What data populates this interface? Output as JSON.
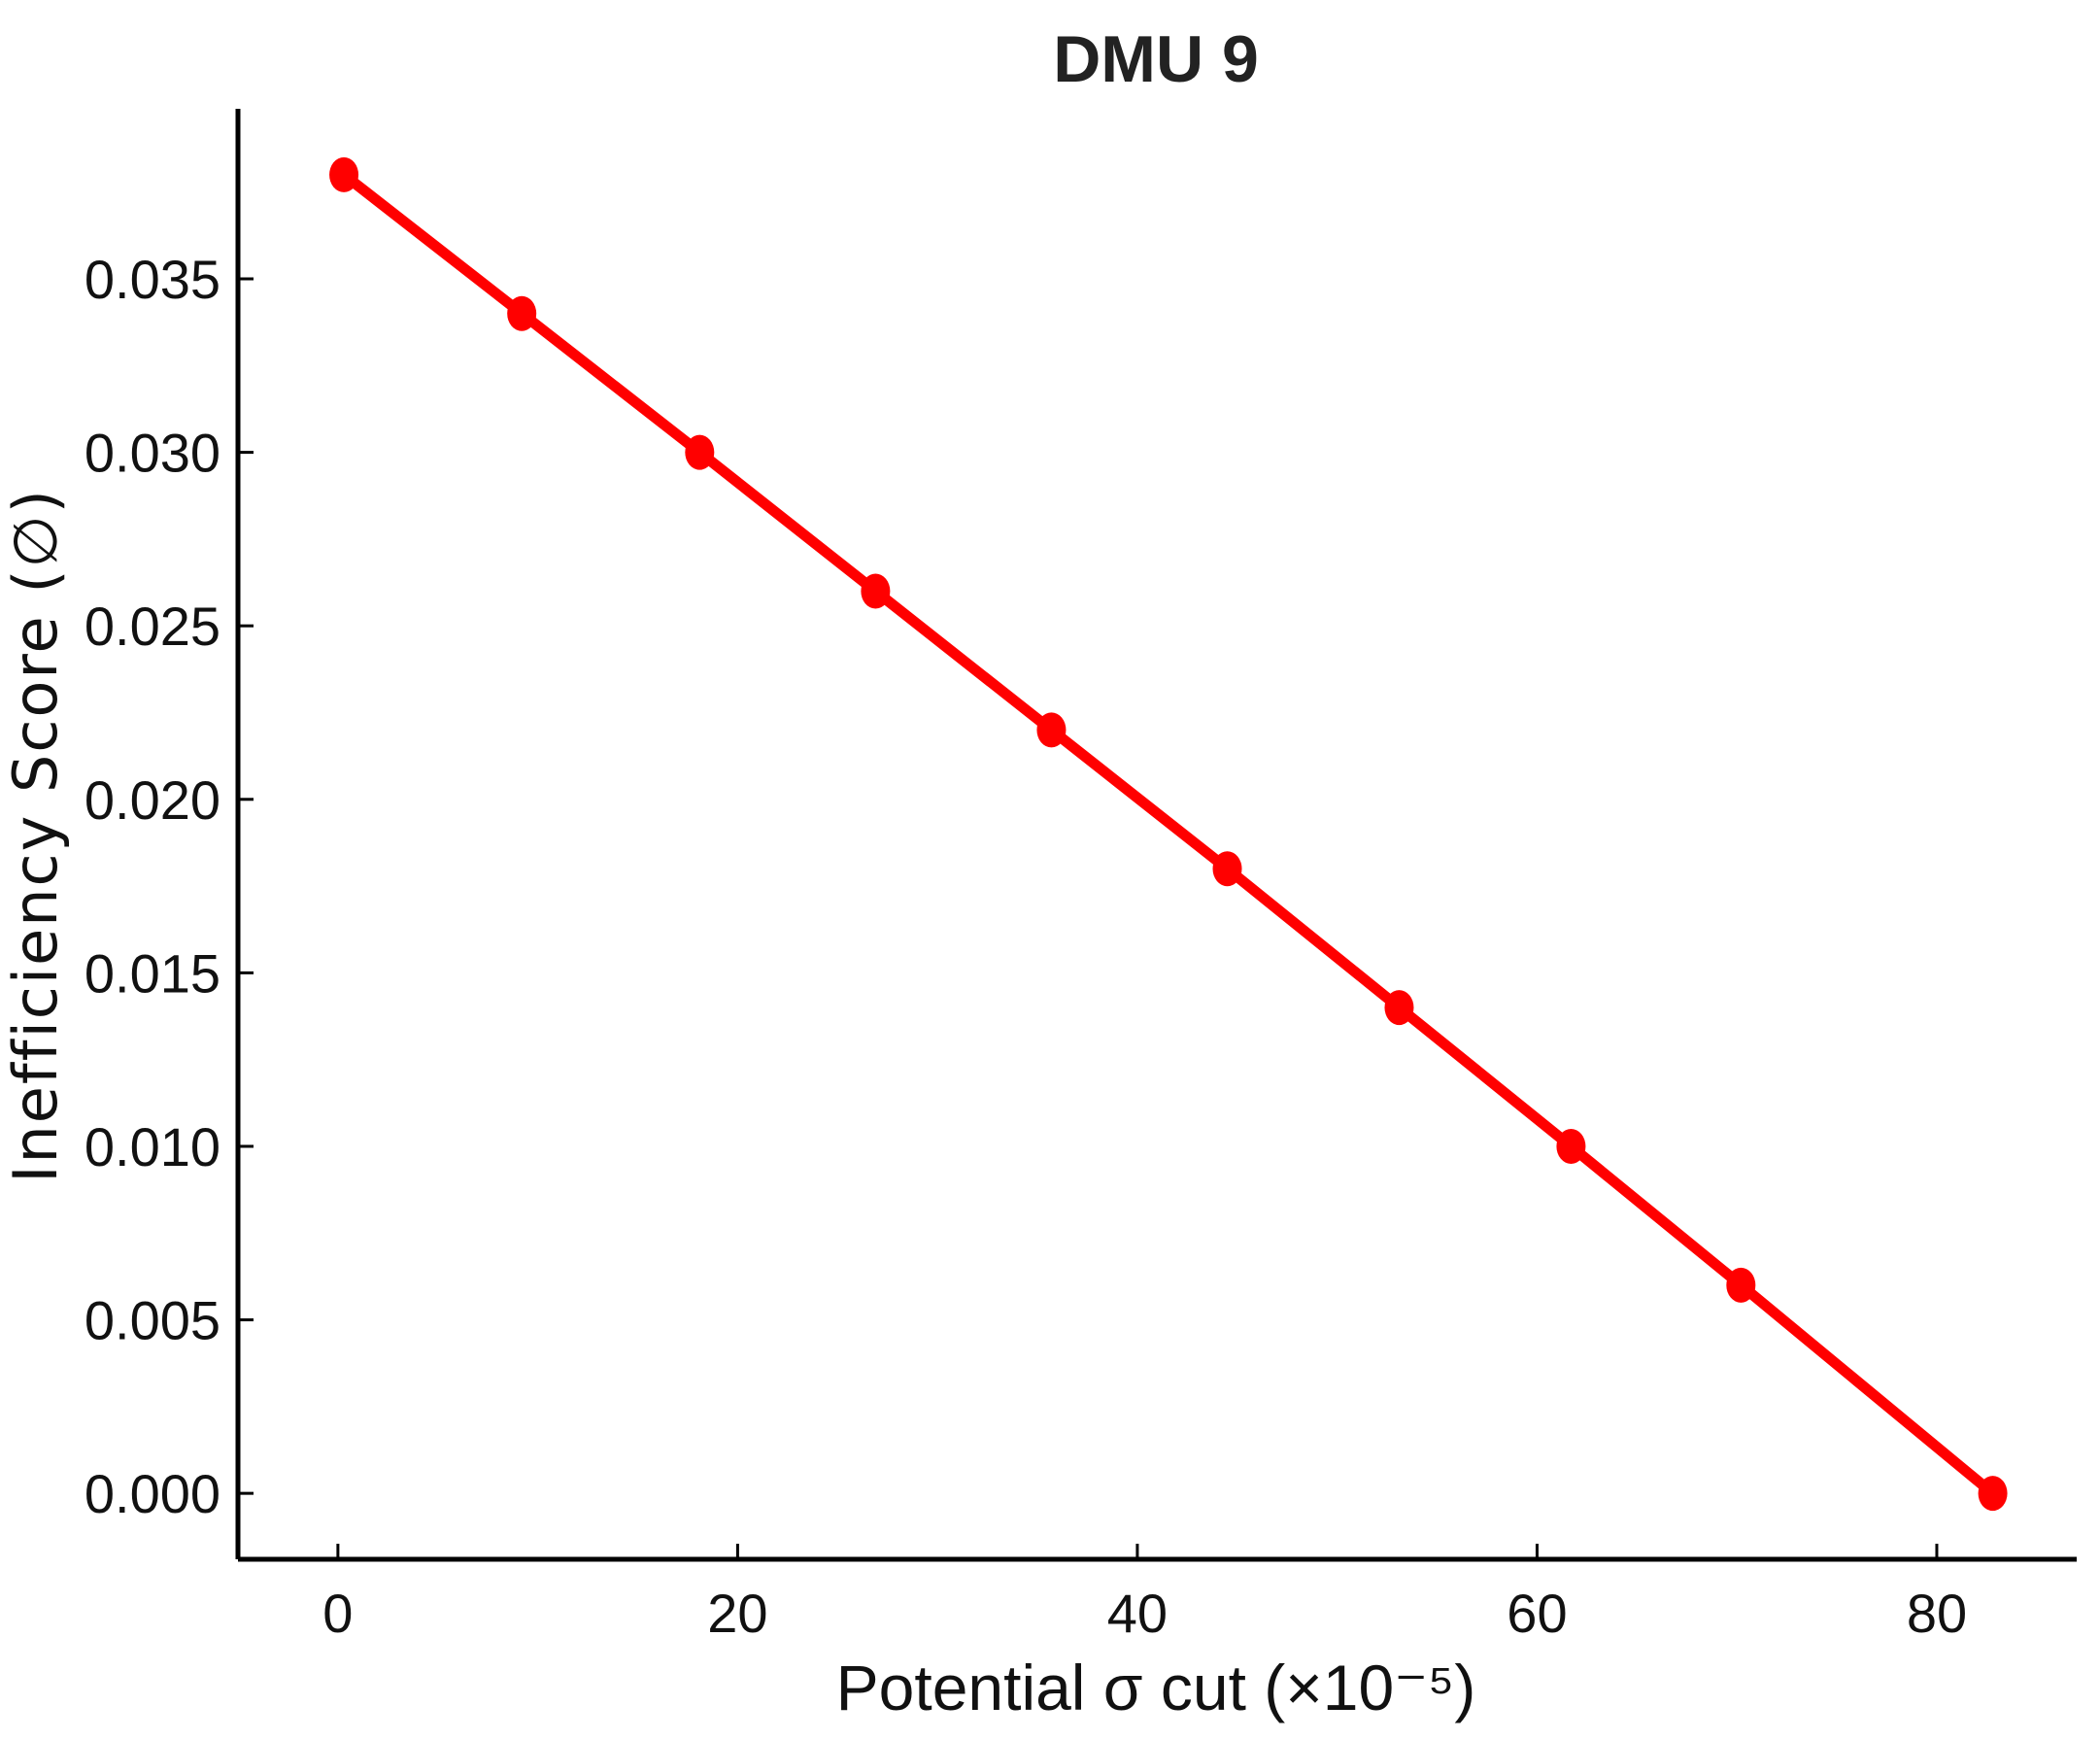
{
  "chart_data": {
    "type": "line",
    "title": "DMU 9",
    "xlabel": "Potential σ cut (×10⁻⁵)",
    "ylabel": "Inefficiency Score (∅)",
    "xlim": [
      -5,
      87
    ],
    "ylim": [
      -0.0019,
      0.0399
    ],
    "xticks": [
      0,
      20,
      40,
      60,
      80
    ],
    "xtick_labels": [
      "0",
      "20",
      "40",
      "60",
      "80"
    ],
    "yticks": [
      0.0,
      0.005,
      0.01,
      0.015,
      0.02,
      0.025,
      0.03,
      0.035
    ],
    "ytick_labels": [
      "0.000",
      "0.005",
      "0.010",
      "0.015",
      "0.020",
      "0.025",
      "0.030",
      "0.035"
    ],
    "grid": false,
    "series": [
      {
        "color": "#ff0000",
        "marker": "circle",
        "x": [
          0.3,
          9.2,
          18.1,
          26.9,
          35.7,
          44.5,
          53.1,
          61.7,
          70.2,
          82.8
        ],
        "y": [
          0.038,
          0.034,
          0.03,
          0.026,
          0.022,
          0.018,
          0.014,
          0.01,
          0.006,
          0.0
        ]
      }
    ]
  }
}
